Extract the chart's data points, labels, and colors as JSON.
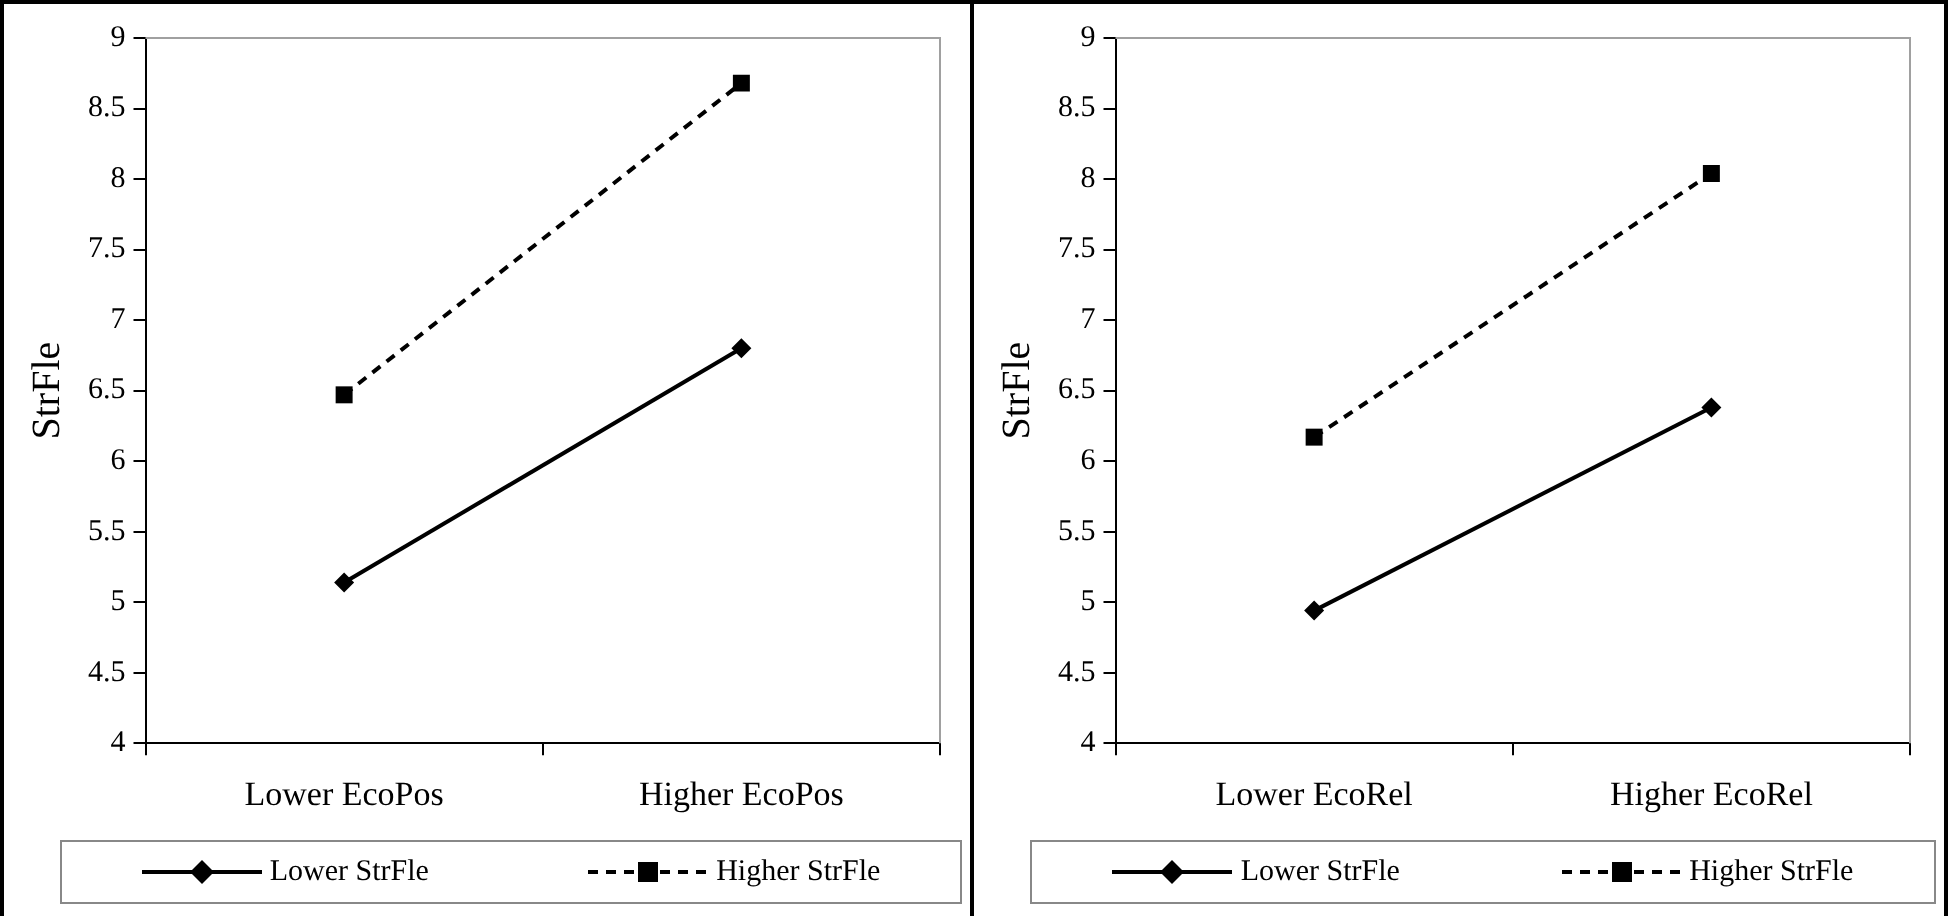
{
  "chart_data": [
    {
      "type": "line",
      "ylabel": "StrFle",
      "categories": [
        "Lower EcoPos",
        "Higher EcoPos"
      ],
      "ylim": [
        4,
        9
      ],
      "yticks": [
        4,
        4.5,
        5,
        5.5,
        6,
        6.5,
        7,
        7.5,
        8,
        8.5,
        9
      ],
      "grid": false,
      "legend": "bottom",
      "series": [
        {
          "name": "Lower StrFle",
          "color": "#000000",
          "values": [
            5.14,
            6.8
          ],
          "marker": "diamond",
          "line_style": "solid"
        },
        {
          "name": "Higher StrFle",
          "color": "#000000",
          "values": [
            6.47,
            8.68
          ],
          "marker": "square",
          "line_style": "dashed"
        }
      ]
    },
    {
      "type": "line",
      "ylabel": "StrFle",
      "categories": [
        "Lower EcoRel",
        "Higher EcoRel"
      ],
      "ylim": [
        4,
        9
      ],
      "yticks": [
        4,
        4.5,
        5,
        5.5,
        6,
        6.5,
        7,
        7.5,
        8,
        8.5,
        9
      ],
      "grid": false,
      "legend": "bottom",
      "series": [
        {
          "name": "Lower StrFle",
          "color": "#000000",
          "values": [
            4.94,
            6.38
          ],
          "marker": "diamond",
          "line_style": "solid"
        },
        {
          "name": "Higher StrFle",
          "color": "#000000",
          "values": [
            6.17,
            8.04
          ],
          "marker": "square",
          "line_style": "dashed"
        }
      ]
    }
  ]
}
